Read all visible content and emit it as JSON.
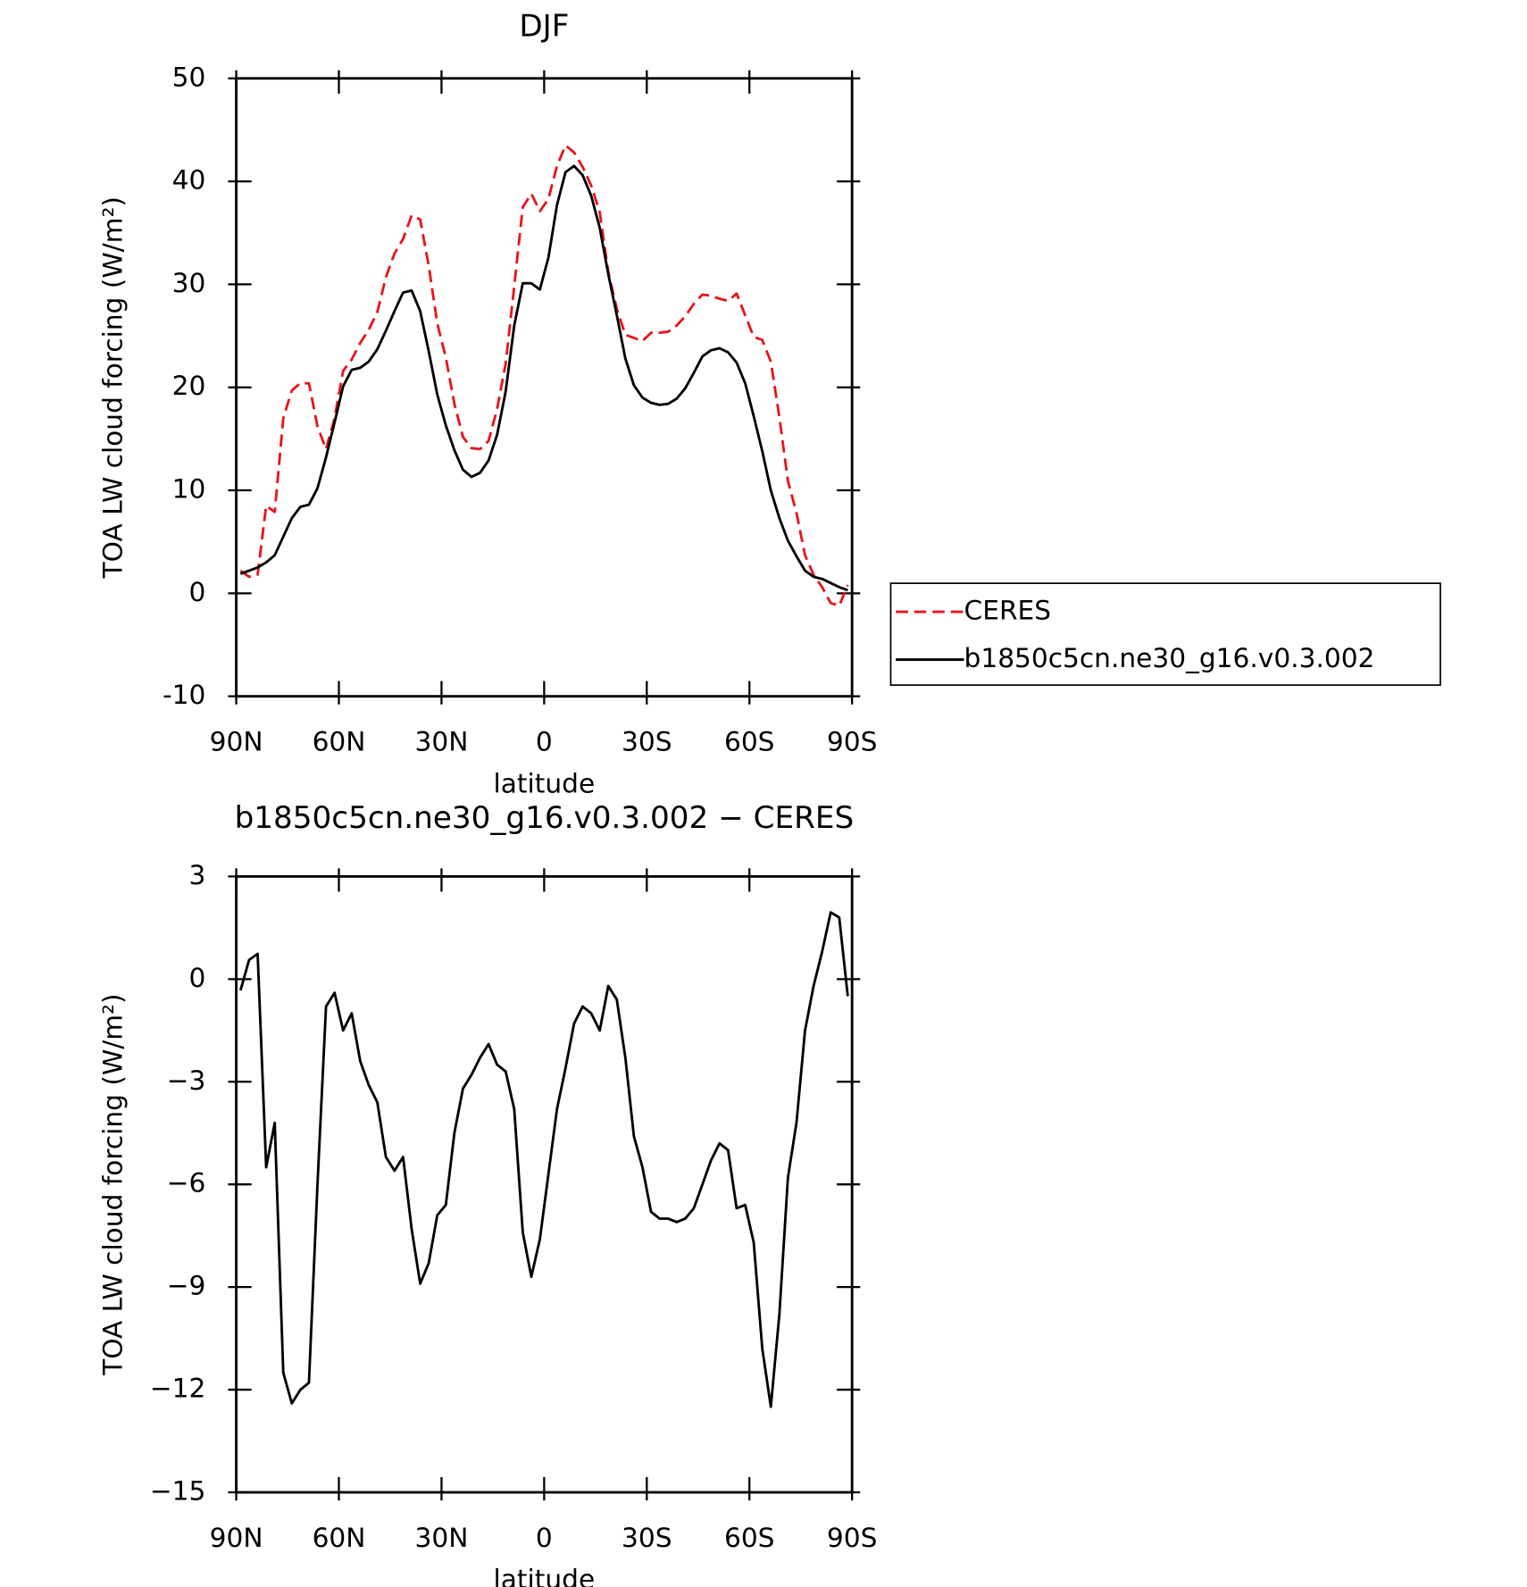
{
  "chart_data": [
    {
      "type": "line",
      "title": "DJF",
      "x_label": "latitude",
      "y_label": "TOA LW cloud forcing (W/m²)",
      "x": [
        88.75,
        86.25,
        83.75,
        81.25,
        78.75,
        76.25,
        73.75,
        71.25,
        68.75,
        66.25,
        63.75,
        61.25,
        58.75,
        56.25,
        53.75,
        51.25,
        48.75,
        46.25,
        43.75,
        41.25,
        38.75,
        36.25,
        33.75,
        31.25,
        28.75,
        26.25,
        23.75,
        21.25,
        18.75,
        16.25,
        13.75,
        11.25,
        8.75,
        6.25,
        3.75,
        1.25,
        -1.25,
        -3.75,
        -6.25,
        -8.75,
        -11.25,
        -13.75,
        -16.25,
        -18.75,
        -21.25,
        -23.75,
        -26.25,
        -28.75,
        -31.25,
        -33.75,
        -36.25,
        -38.75,
        -41.25,
        -43.75,
        -46.25,
        -48.75,
        -51.25,
        -53.75,
        -56.25,
        -58.75,
        -61.25,
        -63.75,
        -66.25,
        -68.75,
        -71.25,
        -73.75,
        -76.25,
        -78.75,
        -81.25,
        -83.75,
        -86.25,
        -88.75
      ],
      "series": [
        {
          "name": "CERES",
          "color": "#e8141b",
          "linestyle": "dashed",
          "values": [
            2.2,
            1.6,
            1.8,
            8.5,
            7.9,
            17.0,
            19.7,
            20.4,
            20.4,
            16.2,
            14.0,
            17.0,
            21.6,
            22.7,
            24.3,
            25.6,
            27.3,
            30.7,
            33.0,
            34.4,
            36.7,
            36.3,
            31.8,
            26.2,
            22.9,
            18.4,
            15.2,
            14.1,
            14.0,
            14.8,
            17.9,
            22.3,
            29.8,
            37.5,
            38.8,
            37.1,
            38.3,
            41.5,
            43.5,
            42.8,
            41.4,
            39.6,
            37.0,
            31.2,
            27.6,
            25.1,
            24.8,
            24.5,
            25.3,
            25.3,
            25.4,
            26.0,
            26.9,
            28.1,
            29.0,
            28.9,
            28.6,
            28.4,
            29.1,
            27.0,
            24.9,
            24.6,
            22.5,
            17.1,
            10.9,
            7.8,
            3.7,
            1.8,
            0.6,
            -0.95,
            -1.2,
            0.8
          ]
        },
        {
          "name": "b1850c5cn.ne30_g16.v0.3.002",
          "color": "#000000",
          "linestyle": "solid",
          "values": [
            1.9,
            2.2,
            2.5,
            3.0,
            3.7,
            5.5,
            7.3,
            8.4,
            8.6,
            10.2,
            13.2,
            16.6,
            20.1,
            21.7,
            21.9,
            22.5,
            23.7,
            25.5,
            27.4,
            29.2,
            29.4,
            27.4,
            23.5,
            19.3,
            16.3,
            13.9,
            12.0,
            11.3,
            11.7,
            12.9,
            15.4,
            19.6,
            26.0,
            30.1,
            30.1,
            29.5,
            32.6,
            37.7,
            40.9,
            41.5,
            40.6,
            38.6,
            35.5,
            31.0,
            27.0,
            22.8,
            20.2,
            19.0,
            18.5,
            18.3,
            18.4,
            18.9,
            19.9,
            21.4,
            23.0,
            23.6,
            23.8,
            23.4,
            22.4,
            20.4,
            17.2,
            13.8,
            10.0,
            7.3,
            5.1,
            3.6,
            2.2,
            1.6,
            1.4,
            1.0,
            0.6,
            0.3
          ]
        }
      ],
      "xlim": [
        90,
        -90
      ],
      "xticks": [
        {
          "value": 90,
          "label": "90N"
        },
        {
          "value": 60,
          "label": "60N"
        },
        {
          "value": 30,
          "label": "30N"
        },
        0,
        {
          "value": -30,
          "label": "30S"
        },
        {
          "value": -60,
          "label": "60S"
        },
        {
          "value": -90,
          "label": "90S"
        }
      ],
      "ylim": [
        -10,
        50
      ],
      "yticks": [
        -10,
        0,
        10,
        20,
        30,
        40,
        50
      ],
      "legend": "right"
    },
    {
      "type": "line",
      "title": "b1850c5cn.ne30_g16.v0.3.002 − CERES",
      "x_label": "latitude",
      "y_label": "TOA LW cloud forcing (W/m²)",
      "x": [
        88.75,
        86.25,
        83.75,
        81.25,
        78.75,
        76.25,
        73.75,
        71.25,
        68.75,
        66.25,
        63.75,
        61.25,
        58.75,
        56.25,
        53.75,
        51.25,
        48.75,
        46.25,
        43.75,
        41.25,
        38.75,
        36.25,
        33.75,
        31.25,
        28.75,
        26.25,
        23.75,
        21.25,
        18.75,
        16.25,
        13.75,
        11.25,
        8.75,
        6.25,
        3.75,
        1.25,
        -1.25,
        -3.75,
        -6.25,
        -8.75,
        -11.25,
        -13.75,
        -16.25,
        -18.75,
        -21.25,
        -23.75,
        -26.25,
        -28.75,
        -31.25,
        -33.75,
        -36.25,
        -38.75,
        -41.25,
        -43.75,
        -46.25,
        -48.75,
        -51.25,
        -53.75,
        -56.25,
        -58.75,
        -61.25,
        -63.75,
        -66.25,
        -68.75,
        -71.25,
        -73.75,
        -76.25,
        -78.75,
        -81.25,
        -83.75,
        -86.25,
        -88.75
      ],
      "color": "#000000",
      "values": [
        -0.33,
        0.56,
        0.74,
        -5.5,
        -4.2,
        -11.5,
        -12.4,
        -12.0,
        -11.8,
        -6.0,
        -0.8,
        -0.4,
        -1.5,
        -1.0,
        -2.4,
        -3.1,
        -3.6,
        -5.2,
        -5.6,
        -5.2,
        -7.3,
        -8.9,
        -8.3,
        -6.9,
        -6.6,
        -4.5,
        -3.2,
        -2.8,
        -2.3,
        -1.9,
        -2.5,
        -2.7,
        -3.8,
        -7.4,
        -8.7,
        -7.6,
        -5.7,
        -3.8,
        -2.6,
        -1.3,
        -0.8,
        -1.0,
        -1.5,
        -0.2,
        -0.6,
        -2.3,
        -4.6,
        -5.5,
        -6.8,
        -7.0,
        -7.0,
        -7.1,
        -7.0,
        -6.7,
        -6.0,
        -5.3,
        -4.8,
        -5.0,
        -6.7,
        -6.6,
        -7.7,
        -10.8,
        -12.5,
        -9.8,
        -5.8,
        -4.2,
        -1.5,
        -0.2,
        0.8,
        1.95,
        1.8,
        -0.5
      ],
      "xlim": [
        90,
        -90
      ],
      "xticks": [
        {
          "value": 90,
          "label": "90N"
        },
        {
          "value": 60,
          "label": "60N"
        },
        {
          "value": 30,
          "label": "30N"
        },
        0,
        {
          "value": -30,
          "label": "30S"
        },
        {
          "value": -60,
          "label": "60S"
        },
        {
          "value": -90,
          "label": "90S"
        }
      ],
      "ylim": [
        -15,
        3
      ],
      "yticks": [
        {
          "value": -15,
          "label": "−15"
        },
        {
          "value": -12,
          "label": "−12"
        },
        {
          "value": -9,
          "label": "−9"
        },
        {
          "value": -6,
          "label": "−6"
        },
        {
          "value": -3,
          "label": "−3"
        },
        0,
        3
      ]
    }
  ]
}
